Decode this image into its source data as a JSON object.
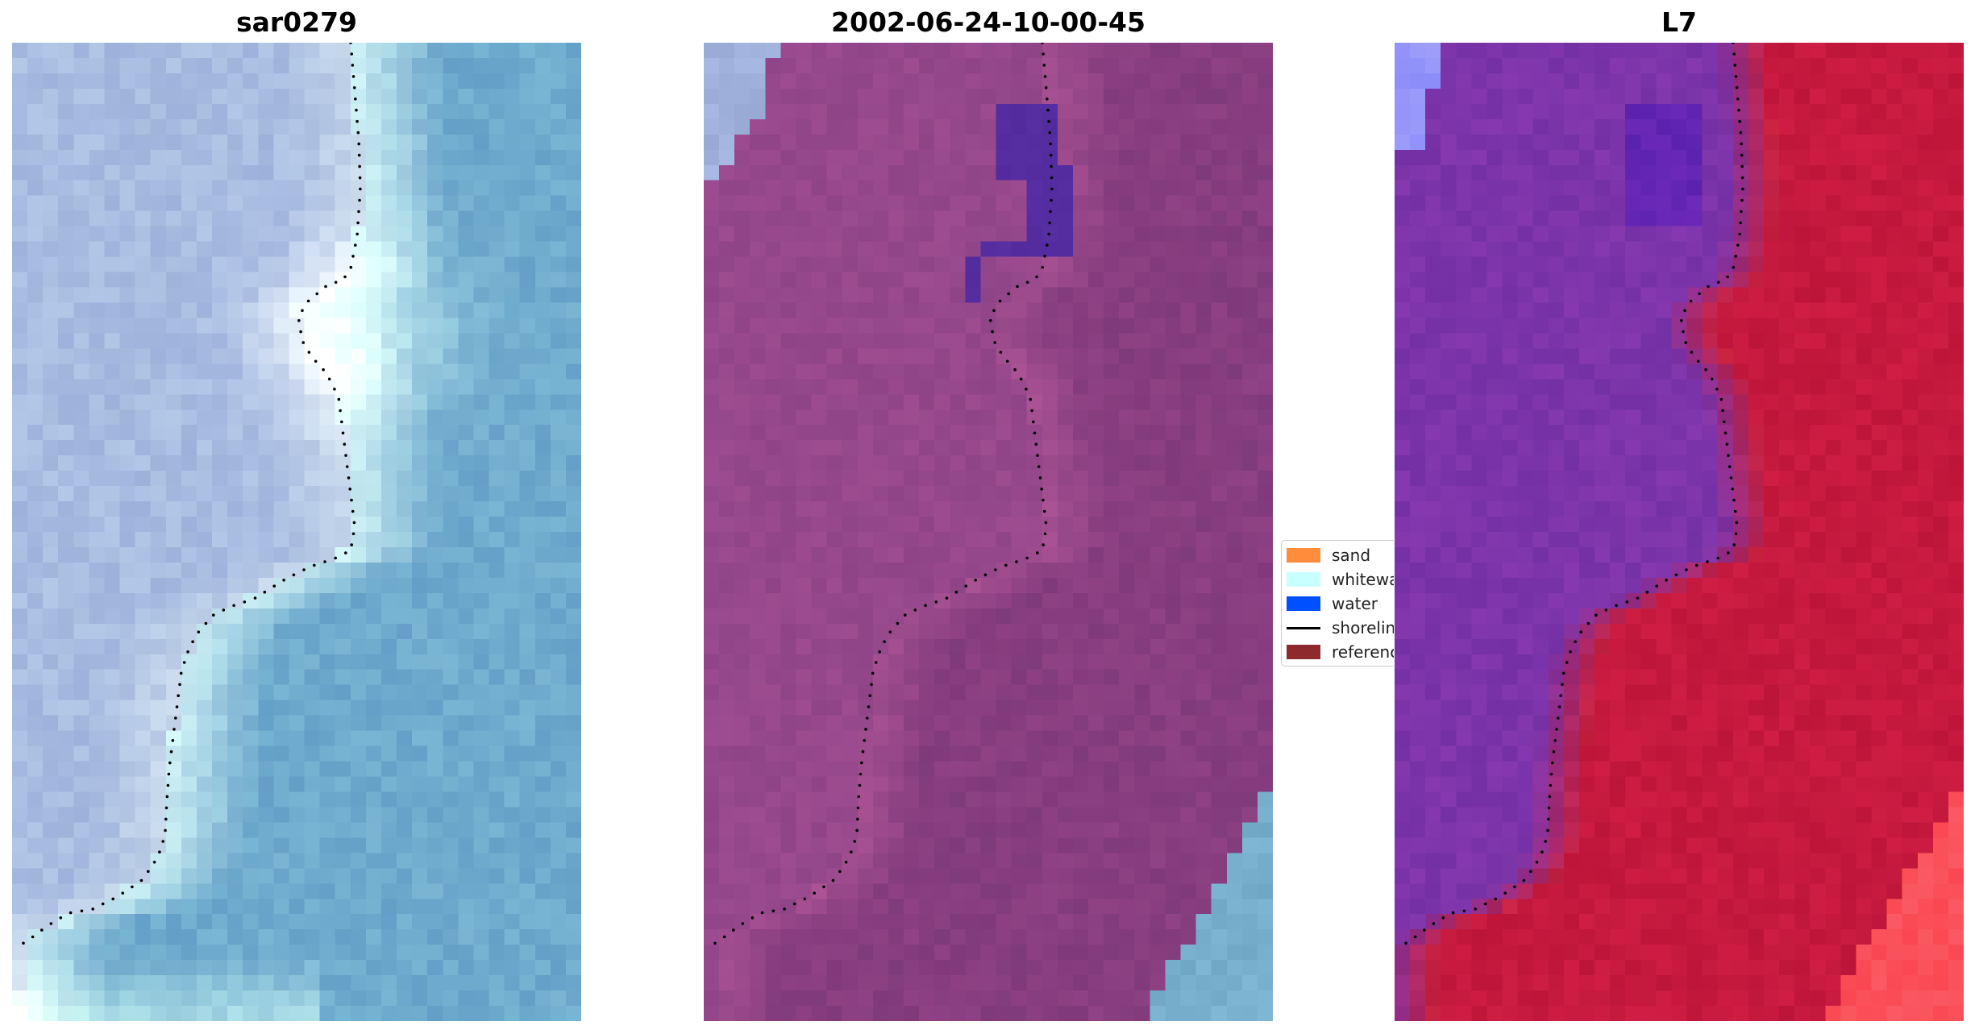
{
  "panels": [
    {
      "title": "sar0279",
      "style": "rgb"
    },
    {
      "title": "2002-06-24-10-00-45",
      "style": "classified"
    },
    {
      "title": "L7",
      "style": "index"
    }
  ],
  "legend": {
    "items": [
      {
        "label": "sand",
        "type": "patch",
        "color": "#ff8c3c"
      },
      {
        "label": "whitewater",
        "type": "patch",
        "color": "#c8ffff"
      },
      {
        "label": "water",
        "type": "patch",
        "color": "#0050ff"
      },
      {
        "label": "shoreline",
        "type": "line",
        "color": "#000000"
      },
      {
        "label": "reference",
        "type": "patch",
        "color": "#8c2a2e"
      }
    ]
  },
  "colors": {
    "shoreline": "#000000",
    "water_class": "#4b2a9e",
    "panel_background_left": "#a9c4e0",
    "panel_background_mid": "#934a8a",
    "panel_background_right": "#c0163f"
  }
}
